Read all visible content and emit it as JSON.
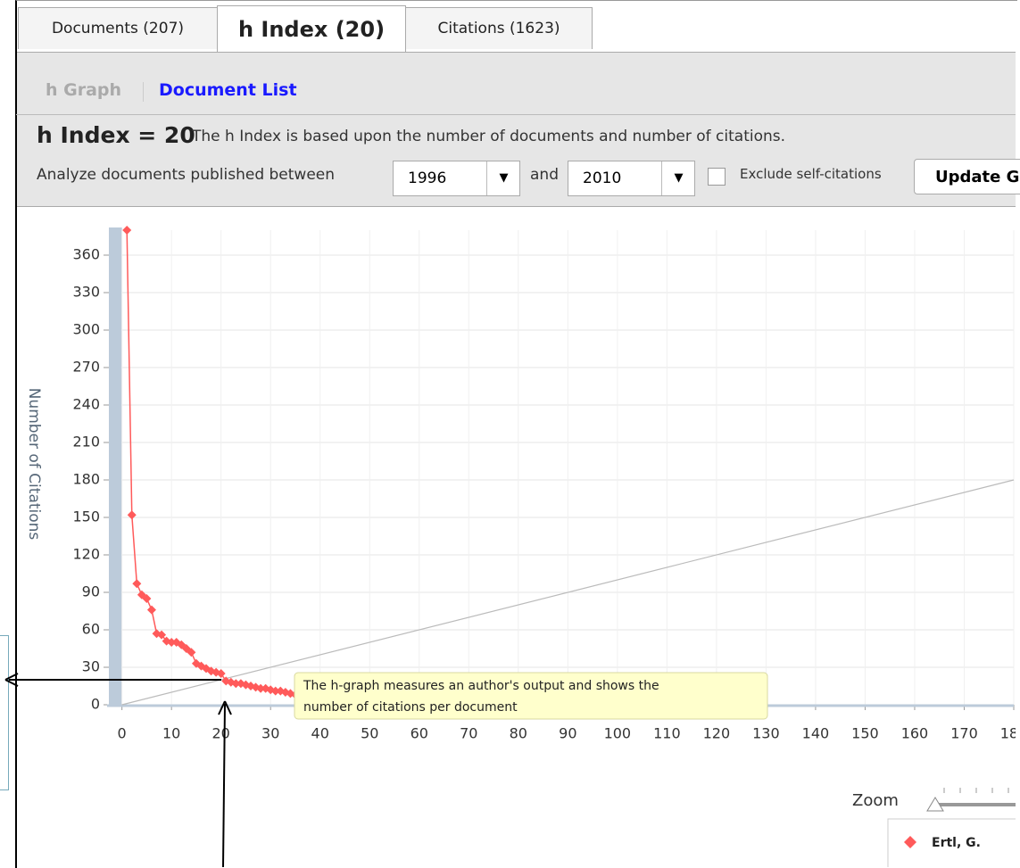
{
  "tabs": [
    "Documents (207)",
    "h Index (20)",
    "Citations (1623)"
  ],
  "subnav": [
    "h Graph",
    "Document List"
  ],
  "heading": "h Index = 20",
  "description": "The h Index is based upon the number of documents and number of citations.",
  "filter": {
    "label": "Analyze documents published between",
    "from": "1996",
    "and": "and",
    "to": "2010",
    "exclude": "Exclude self-citations",
    "button": "Update G"
  },
  "zoom": "Zoom",
  "chart_data": {
    "type": "line",
    "y_label": "Number of Citations",
    "annotations": [
      "The h-graph measures an author's output and shows the",
      "number of citations per document"
    ],
    "xlim": [
      -3,
      180
    ],
    "ylim": [
      0,
      380
    ],
    "xticks": [
      0,
      10,
      20,
      30,
      40,
      50,
      60,
      70,
      80,
      90,
      100,
      110,
      120,
      130,
      140,
      150,
      160,
      170,
      180
    ],
    "yticks": [
      0,
      30,
      60,
      90,
      120,
      150,
      180,
      210,
      240,
      270,
      300,
      330,
      360
    ],
    "grid": true,
    "series": [
      {
        "name": "Ertl, G.",
        "color": "#ff5a5a",
        "x": [
          1,
          2,
          3,
          4,
          5,
          6,
          7,
          8,
          9,
          10,
          11,
          12,
          13,
          14,
          15,
          16,
          17,
          18,
          19,
          20,
          21,
          22,
          23,
          24,
          25,
          26,
          27,
          28,
          29,
          30,
          31,
          32,
          33,
          34,
          35
        ],
        "values": [
          380,
          152,
          97,
          88,
          85,
          76,
          57,
          56,
          51,
          50,
          50,
          48,
          45,
          42,
          33,
          31,
          29,
          27,
          26,
          25,
          19,
          18,
          17,
          17,
          16,
          15,
          14,
          13,
          13,
          12,
          11,
          11,
          10,
          9,
          8
        ]
      }
    ]
  }
}
